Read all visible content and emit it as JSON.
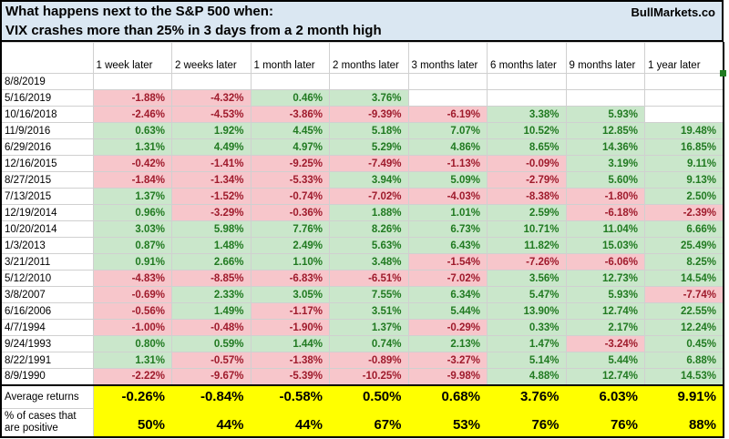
{
  "title": {
    "line1": "What happens next to the S&P 500 when:",
    "line2": "VIX crashes more than 25% in 3 days from a 2 month high",
    "brand": "BullMarkets.co"
  },
  "chart_data": {
    "type": "table",
    "title": "What happens next to the S&P 500 when: VIX crashes more than 25% in 3 days from a 2 month high",
    "columns": [
      "1 week later",
      "2 weeks later",
      "1 month later",
      "2 months later",
      "3 months later",
      "6 months later",
      "9 months later",
      "1 year later"
    ],
    "rows": [
      {
        "date": "8/8/2019",
        "values": [
          null,
          null,
          null,
          null,
          null,
          null,
          null,
          null
        ]
      },
      {
        "date": "5/16/2019",
        "values": [
          "-1.88%",
          "-4.32%",
          "0.46%",
          "3.76%",
          null,
          null,
          null,
          null
        ]
      },
      {
        "date": "10/16/2018",
        "values": [
          "-2.46%",
          "-4.53%",
          "-3.86%",
          "-9.39%",
          "-6.19%",
          "3.38%",
          "5.93%",
          null
        ]
      },
      {
        "date": "11/9/2016",
        "values": [
          "0.63%",
          "1.92%",
          "4.45%",
          "5.18%",
          "7.07%",
          "10.52%",
          "12.85%",
          "19.48%"
        ]
      },
      {
        "date": "6/29/2016",
        "values": [
          "1.31%",
          "4.49%",
          "4.97%",
          "5.29%",
          "4.86%",
          "8.65%",
          "14.36%",
          "16.85%"
        ]
      },
      {
        "date": "12/16/2015",
        "values": [
          "-0.42%",
          "-1.41%",
          "-9.25%",
          "-7.49%",
          "-1.13%",
          "-0.09%",
          "3.19%",
          "9.11%"
        ]
      },
      {
        "date": "8/27/2015",
        "values": [
          "-1.84%",
          "-1.34%",
          "-5.33%",
          "3.94%",
          "5.09%",
          "-2.79%",
          "5.60%",
          "9.13%"
        ]
      },
      {
        "date": "7/13/2015",
        "values": [
          "1.37%",
          "-1.52%",
          "-0.74%",
          "-7.02%",
          "-4.03%",
          "-8.38%",
          "-1.80%",
          "2.50%"
        ]
      },
      {
        "date": "12/19/2014",
        "values": [
          "0.96%",
          "-3.29%",
          "-0.36%",
          "1.88%",
          "1.01%",
          "2.59%",
          "-6.18%",
          "-2.39%"
        ]
      },
      {
        "date": "10/20/2014",
        "values": [
          "3.03%",
          "5.98%",
          "7.76%",
          "8.26%",
          "6.73%",
          "10.71%",
          "11.04%",
          "6.66%"
        ]
      },
      {
        "date": "1/3/2013",
        "values": [
          "0.87%",
          "1.48%",
          "2.49%",
          "5.63%",
          "6.43%",
          "11.82%",
          "15.03%",
          "25.49%"
        ]
      },
      {
        "date": "3/21/2011",
        "values": [
          "0.91%",
          "2.66%",
          "1.10%",
          "3.48%",
          "-1.54%",
          "-7.26%",
          "-6.06%",
          "8.25%"
        ]
      },
      {
        "date": "5/12/2010",
        "values": [
          "-4.83%",
          "-8.85%",
          "-6.83%",
          "-6.51%",
          "-7.02%",
          "3.56%",
          "12.73%",
          "14.54%"
        ]
      },
      {
        "date": "3/8/2007",
        "values": [
          "-0.69%",
          "2.33%",
          "3.05%",
          "7.55%",
          "6.34%",
          "5.47%",
          "5.93%",
          "-7.74%"
        ]
      },
      {
        "date": "6/16/2006",
        "values": [
          "-0.56%",
          "1.49%",
          "-1.17%",
          "3.51%",
          "5.44%",
          "13.90%",
          "12.74%",
          "22.55%"
        ]
      },
      {
        "date": "4/7/1994",
        "values": [
          "-1.00%",
          "-0.48%",
          "-1.90%",
          "1.37%",
          "-0.29%",
          "0.33%",
          "2.17%",
          "12.24%"
        ]
      },
      {
        "date": "9/24/1993",
        "values": [
          "0.80%",
          "0.59%",
          "1.44%",
          "0.74%",
          "2.13%",
          "1.47%",
          "-3.24%",
          "0.45%"
        ]
      },
      {
        "date": "8/22/1991",
        "values": [
          "1.31%",
          "-0.57%",
          "-1.38%",
          "-0.89%",
          "-3.27%",
          "5.14%",
          "5.44%",
          "6.88%"
        ]
      },
      {
        "date": "8/9/1990",
        "values": [
          "-2.22%",
          "-9.67%",
          "-5.39%",
          "-10.25%",
          "-9.98%",
          "4.88%",
          "12.74%",
          "14.53%"
        ]
      }
    ],
    "summary": {
      "average_label": "Average returns",
      "averages": [
        "-0.26%",
        "-0.84%",
        "-0.58%",
        "0.50%",
        "0.68%",
        "3.76%",
        "6.03%",
        "9.91%"
      ],
      "percent_label_line1": "% of cases that",
      "percent_label_line2": "are positive",
      "percent_positive": [
        "50%",
        "44%",
        "44%",
        "67%",
        "53%",
        "76%",
        "76%",
        "88%"
      ]
    }
  },
  "colors": {
    "title_bg": "#dae7f2",
    "positive_bg": "#cae7cb",
    "positive_text": "#217a21",
    "negative_bg": "#f7c6cb",
    "negative_text": "#9f1b2c",
    "summary_bg": "#ffff00",
    "grid_line": "#d0d0d0",
    "border": "#000000",
    "handle": "#217a21"
  }
}
